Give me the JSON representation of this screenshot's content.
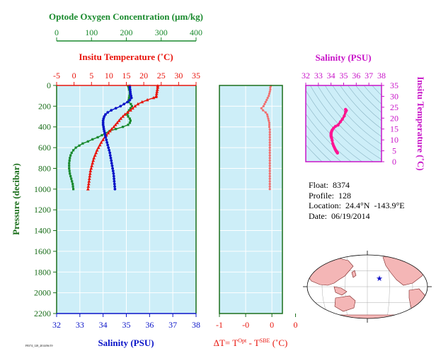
{
  "colors": {
    "oxygen": "#1a8a2e",
    "temperature": "#e8140c",
    "salinity": "#0a14c8",
    "ts_salinity": "#c814c8",
    "delta_t": "#f07070",
    "plot_bg": "#cdeef8",
    "axis_green": "#1a6e1a"
  },
  "info": {
    "float_line": "Float:  8374",
    "profile_line": "Profile:  128",
    "location_line": "Location:  24.4°N  -143.9°E",
    "date_line": "Date:  06/19/2014"
  },
  "tiny_label": "F8374_128_2014/06/19",
  "chart_data": [
    {
      "type": "line",
      "id": "profile-panel",
      "ylabel": "Pressure (decibar)",
      "ylim": [
        0,
        2200
      ],
      "y_inverted": true,
      "yticks": [
        0,
        200,
        400,
        600,
        800,
        1000,
        1200,
        1400,
        1600,
        1800,
        2000,
        2200
      ],
      "axes": {
        "oxygen": {
          "label": "Optode Oxygen Concentration (µm/kg)",
          "lim": [
            0,
            400
          ],
          "ticks": [
            0,
            100,
            200,
            300,
            400
          ]
        },
        "temperature": {
          "label": "Insitu Temperature (˚C)",
          "lim": [
            -5,
            35
          ],
          "ticks": [
            -5,
            0,
            5,
            10,
            15,
            20,
            25,
            30,
            35
          ]
        },
        "salinity": {
          "label": "Salinity (PSU)",
          "lim": [
            32,
            38
          ],
          "ticks": [
            32,
            33,
            34,
            35,
            36,
            37,
            38
          ]
        }
      },
      "series": [
        {
          "name": "oxygen",
          "axis": "oxygen",
          "p": [
            5,
            20,
            40,
            60,
            80,
            100,
            120,
            140,
            160,
            180,
            200,
            220,
            240,
            260,
            280,
            300,
            320,
            340,
            360,
            380,
            400,
            420,
            440,
            460,
            480,
            500,
            520,
            540,
            560,
            580,
            600,
            625,
            650,
            675,
            700,
            725,
            750,
            775,
            800,
            825,
            850,
            875,
            900,
            925,
            950,
            975,
            1000
          ],
          "v": [
            205,
            207,
            208,
            210,
            210,
            209,
            208,
            207,
            207,
            213,
            216,
            212,
            208,
            204,
            203,
            205,
            210,
            212,
            210,
            205,
            190,
            170,
            152,
            140,
            130,
            118,
            103,
            90,
            75,
            65,
            55,
            48,
            43,
            40,
            38,
            37,
            36,
            36,
            36,
            37,
            38,
            40,
            42,
            44,
            46,
            47,
            48
          ]
        },
        {
          "name": "temperature",
          "axis": "temperature",
          "p": [
            5,
            20,
            40,
            60,
            80,
            100,
            110,
            120,
            140,
            160,
            180,
            200,
            220,
            240,
            260,
            280,
            300,
            320,
            340,
            360,
            380,
            400,
            420,
            440,
            460,
            480,
            500,
            525,
            550,
            575,
            600,
            625,
            650,
            675,
            700,
            725,
            750,
            775,
            800,
            825,
            850,
            875,
            900,
            925,
            950,
            975,
            1000
          ],
          "v": [
            24.0,
            24.0,
            23.9,
            23.8,
            23.7,
            23.6,
            23.5,
            22.8,
            21.0,
            19.5,
            18.3,
            17.5,
            16.8,
            16.2,
            15.4,
            14.6,
            14.0,
            13.4,
            12.9,
            12.4,
            11.9,
            11.4,
            10.8,
            10.3,
            9.8,
            9.3,
            8.8,
            8.3,
            7.8,
            7.4,
            7.0,
            6.6,
            6.3,
            6.0,
            5.7,
            5.5,
            5.3,
            5.1,
            4.9,
            4.7,
            4.6,
            4.5,
            4.4,
            4.3,
            4.2,
            4.1,
            4.0
          ]
        },
        {
          "name": "salinity",
          "axis": "salinity",
          "p": [
            5,
            20,
            40,
            60,
            80,
            100,
            120,
            140,
            160,
            180,
            200,
            220,
            240,
            260,
            280,
            300,
            320,
            340,
            360,
            380,
            400,
            420,
            440,
            460,
            480,
            500,
            525,
            550,
            575,
            600,
            625,
            650,
            675,
            700,
            725,
            750,
            775,
            800,
            825,
            850,
            875,
            900,
            925,
            950,
            975,
            1000
          ],
          "v": [
            35.15,
            35.15,
            35.16,
            35.17,
            35.18,
            35.2,
            35.22,
            35.15,
            35.05,
            34.9,
            34.75,
            34.55,
            34.35,
            34.2,
            34.1,
            34.05,
            34.02,
            34.0,
            34.0,
            34.0,
            34.02,
            34.03,
            34.05,
            34.07,
            34.09,
            34.11,
            34.14,
            34.17,
            34.2,
            34.23,
            34.26,
            34.29,
            34.31,
            34.33,
            34.35,
            34.37,
            34.39,
            34.41,
            34.43,
            34.45,
            34.46,
            34.47,
            34.48,
            34.49,
            34.5,
            34.51
          ]
        }
      ]
    },
    {
      "type": "line",
      "id": "delta-t-panel",
      "xlabel_parts": [
        "ΔT= T",
        "Opt",
        " - T",
        "SBE",
        " (˚C)"
      ],
      "xlim": [
        -1,
        0.2
      ],
      "xticks": [
        {
          "v": -1,
          "label": "-1"
        },
        {
          "v": -0.5,
          "label": "-0"
        },
        {
          "v": 0,
          "label": "0"
        },
        {
          "v": 0.45,
          "label": "0"
        }
      ],
      "ylim": [
        0,
        2200
      ],
      "series": [
        {
          "name": "delta_t",
          "p": [
            5,
            20,
            40,
            60,
            80,
            100,
            120,
            140,
            160,
            180,
            200,
            220,
            240,
            260,
            280,
            300,
            320,
            340,
            360,
            380,
            400,
            425,
            450,
            475,
            500,
            525,
            550,
            575,
            600,
            625,
            650,
            675,
            700,
            725,
            750,
            775,
            800,
            825,
            850,
            875,
            900,
            925,
            950,
            975,
            1000
          ],
          "v": [
            -0.02,
            -0.03,
            -0.03,
            -0.04,
            -0.05,
            -0.06,
            -0.08,
            -0.1,
            -0.12,
            -0.14,
            -0.16,
            -0.2,
            -0.17,
            -0.12,
            -0.09,
            -0.08,
            -0.07,
            -0.06,
            -0.05,
            -0.05,
            -0.05,
            -0.04,
            -0.04,
            -0.04,
            -0.04,
            -0.04,
            -0.04,
            -0.04,
            -0.04,
            -0.04,
            -0.04,
            -0.04,
            -0.04,
            -0.04,
            -0.04,
            -0.04,
            -0.04,
            -0.04,
            -0.04,
            -0.04,
            -0.04,
            -0.04,
            -0.04,
            -0.04,
            -0.04
          ]
        }
      ]
    },
    {
      "type": "scatter",
      "id": "ts-panel",
      "xlabel": "Salinity (PSU)",
      "ylabel": "Insitu Temperature (˚C)",
      "xlim": [
        32,
        38
      ],
      "xticks": [
        32,
        33,
        34,
        35,
        36,
        37,
        38
      ],
      "ylim": [
        0,
        35
      ],
      "yticks": [
        0,
        5,
        10,
        15,
        20,
        25,
        30,
        35
      ],
      "series": [
        {
          "name": "ts",
          "x": [
            35.15,
            35.18,
            35.22,
            35.15,
            35.05,
            34.9,
            34.75,
            34.55,
            34.35,
            34.2,
            34.1,
            34.05,
            34.02,
            34.0,
            34.0,
            34.0,
            34.02,
            34.05,
            34.09,
            34.14,
            34.2,
            34.26,
            34.31,
            34.35,
            34.39,
            34.43,
            34.46,
            34.48,
            34.5,
            34.51
          ],
          "y": [
            24.0,
            23.7,
            23.5,
            22.8,
            21.0,
            19.5,
            18.3,
            16.8,
            16.2,
            15.4,
            14.6,
            14.0,
            13.4,
            12.9,
            12.4,
            11.9,
            11.4,
            10.8,
            9.8,
            8.3,
            7.4,
            6.6,
            6.0,
            5.5,
            5.1,
            4.7,
            4.5,
            4.3,
            4.2,
            4.0
          ]
        }
      ]
    },
    {
      "type": "map",
      "id": "location-map",
      "marker": {
        "lat": 24.4,
        "lon": -143.9
      }
    }
  ]
}
